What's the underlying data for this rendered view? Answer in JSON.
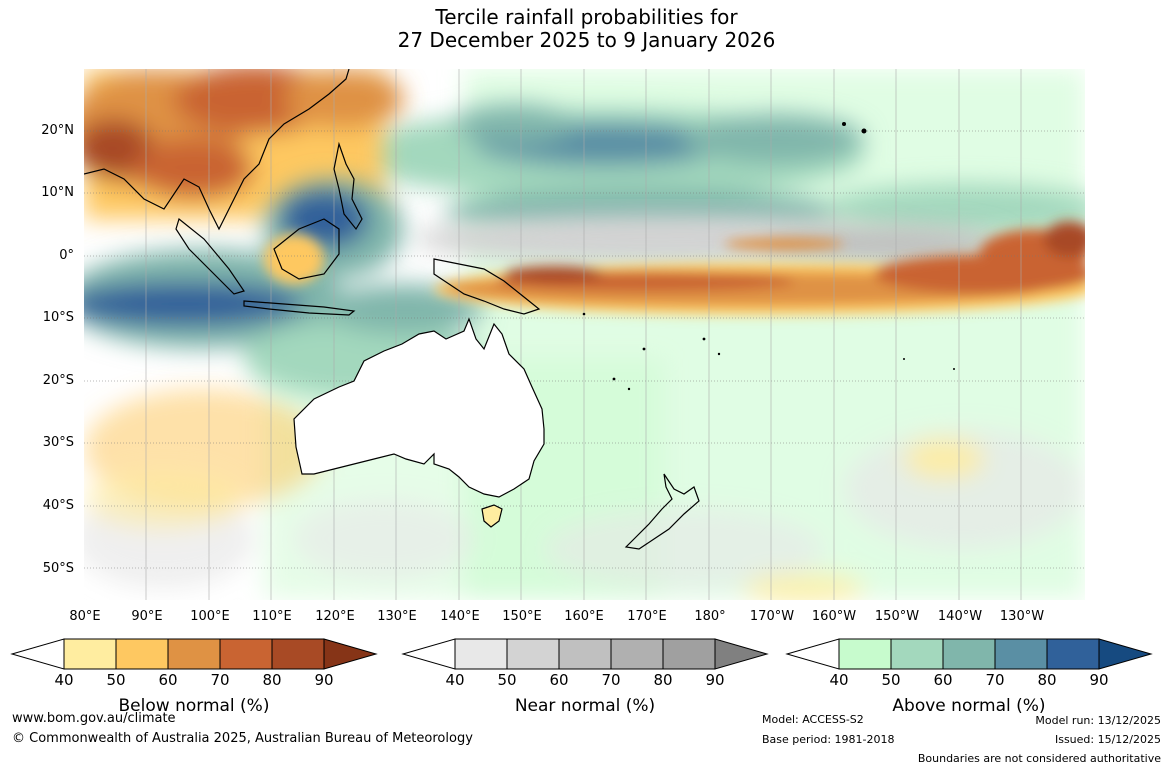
{
  "title": {
    "line1": "Tercile rainfall probabilities for",
    "line2": "27 December 2025 to 9 January 2026"
  },
  "lat_labels": [
    "20°N",
    "10°N",
    "0°",
    "10°S",
    "20°S",
    "30°S",
    "40°S",
    "50°S"
  ],
  "lon_labels": [
    "80°E",
    "90°E",
    "100°E",
    "110°E",
    "120°E",
    "130°E",
    "140°E",
    "150°E",
    "160°E",
    "170°E",
    "180°",
    "170°W",
    "160°W",
    "150°W",
    "140°W",
    "130°W"
  ],
  "colorbars": {
    "below": {
      "label": "Below normal (%)",
      "ticks": [
        "40",
        "50",
        "60",
        "70",
        "80",
        "90"
      ],
      "colors": [
        "#ffeda0",
        "#fec861",
        "#df9244",
        "#c96432",
        "#a84a25",
        "#863417"
      ]
    },
    "near": {
      "label": "Near normal (%)",
      "ticks": [
        "40",
        "50",
        "60",
        "70",
        "80",
        "90"
      ],
      "colors": [
        "#e8e8e8",
        "#d3d3d3",
        "#c0c0c0",
        "#b0b0b0",
        "#a0a0a0",
        "#808080"
      ]
    },
    "above": {
      "label": "Above normal (%)",
      "ticks": [
        "40",
        "50",
        "60",
        "70",
        "80",
        "90"
      ],
      "colors": [
        "#c7fbcd",
        "#a3d8bd",
        "#80b6ab",
        "#5a8fa4",
        "#30619a",
        "#164a80"
      ]
    }
  },
  "footer": {
    "website": "www.bom.gov.au/climate",
    "copyright": "© Commonwealth of Australia 2025, Australian Bureau of Meteorology",
    "model": "Model: ACCESS-S2",
    "base_period": "Base period: 1981-2018",
    "model_run": "Model run: 13/12/2025",
    "issued": "Issued: 15/12/2025",
    "disclaimer": "Boundaries are not considered authoritative"
  }
}
